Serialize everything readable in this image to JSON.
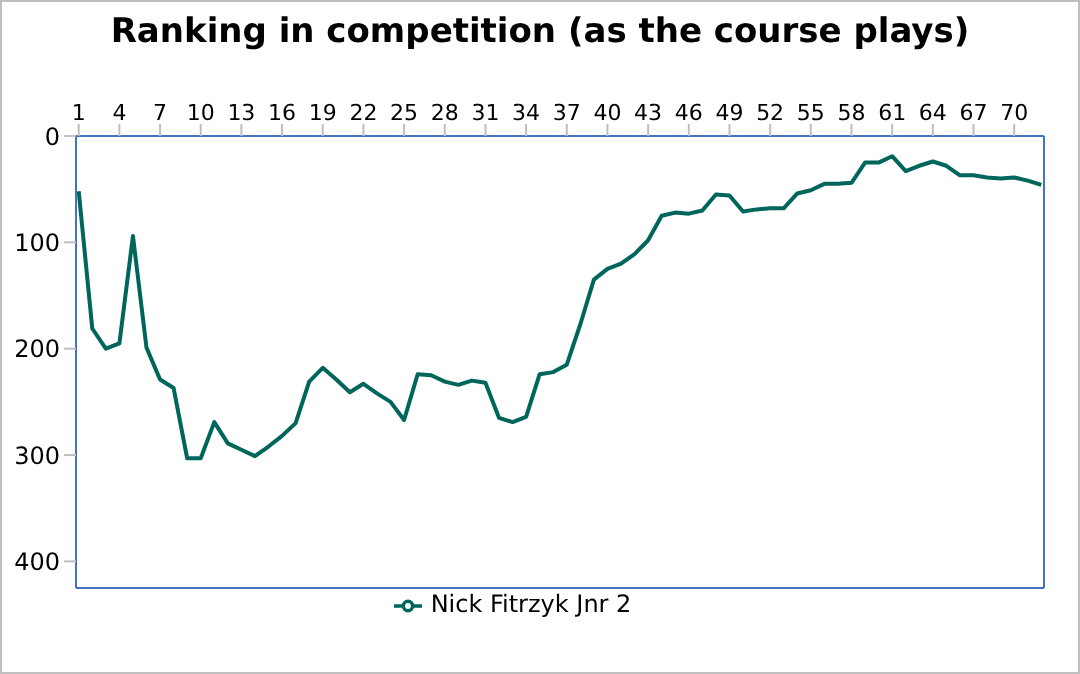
{
  "chart_data": {
    "type": "line",
    "title": "Ranking in competition (as the course plays)",
    "x": [
      1,
      2,
      3,
      4,
      5,
      6,
      7,
      8,
      9,
      10,
      11,
      12,
      13,
      14,
      15,
      16,
      17,
      18,
      19,
      20,
      21,
      22,
      23,
      24,
      25,
      26,
      27,
      28,
      29,
      30,
      31,
      32,
      33,
      34,
      35,
      36,
      37,
      38,
      39,
      40,
      41,
      42,
      43,
      44,
      45,
      46,
      47,
      48,
      49,
      50,
      51,
      52,
      53,
      54,
      55,
      56,
      57,
      58,
      59,
      60,
      61,
      62,
      63,
      64,
      65,
      66,
      67,
      68,
      69,
      70,
      71,
      72
    ],
    "series": [
      {
        "name": "Nick Fitrzyk Jnr 2",
        "color": "#00665c",
        "values": [
          52,
          181,
          200,
          195,
          94,
          199,
          229,
          237,
          303,
          303,
          269,
          289,
          295,
          301,
          292,
          282,
          270,
          231,
          218,
          229,
          241,
          233,
          242,
          250,
          267,
          224,
          225,
          231,
          234,
          230,
          232,
          265,
          269,
          264,
          224,
          222,
          215,
          177,
          135,
          125,
          120,
          111,
          98,
          75,
          72,
          73,
          70,
          55,
          56,
          71,
          69,
          68,
          68,
          54,
          51,
          45,
          45,
          44,
          25,
          25,
          19,
          33,
          28,
          24,
          28,
          37,
          37,
          39,
          40,
          39,
          42,
          46
        ]
      }
    ],
    "xlim": [
      0.8,
      72.2
    ],
    "xticks": [
      1,
      4,
      7,
      10,
      13,
      16,
      19,
      22,
      25,
      28,
      31,
      34,
      37,
      40,
      43,
      46,
      49,
      52,
      55,
      58,
      61,
      64,
      67,
      70
    ],
    "ylim": [
      425,
      0
    ],
    "yticks": [
      0,
      100,
      200,
      300,
      400
    ],
    "grid": false,
    "legend": "bottom",
    "marker": "none",
    "line_style": "solid"
  }
}
